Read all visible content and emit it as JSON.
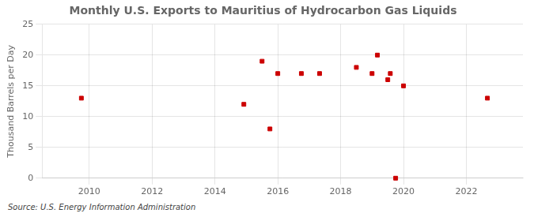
{
  "chart_data": {
    "type": "scatter",
    "title": "Monthly U.S. Exports to Mauritius of Hydrocarbon Gas Liquids",
    "ylabel": "Thousand Barrels per Day",
    "annotations": [
      "Source: U.S. Energy Information Administration"
    ],
    "x": [
      2009.75,
      2014.92,
      2015.5,
      2015.75,
      2016.0,
      2016.75,
      2017.33,
      2018.5,
      2019.0,
      2019.17,
      2019.5,
      2019.58,
      2019.75,
      2020.0,
      2022.67
    ],
    "values": [
      13,
      12,
      19,
      8,
      17,
      17,
      17,
      18,
      17,
      20,
      16,
      17,
      0,
      15,
      13
    ],
    "color": "#cc0000",
    "marker": "square",
    "xlim": [
      2008.5,
      2023.8
    ],
    "xticks": [
      2010,
      2012,
      2014,
      2016,
      2018,
      2020,
      2022
    ],
    "ylim": [
      0,
      25
    ],
    "yticks": [
      0,
      5,
      10,
      15,
      20,
      25
    ],
    "grid": true
  }
}
